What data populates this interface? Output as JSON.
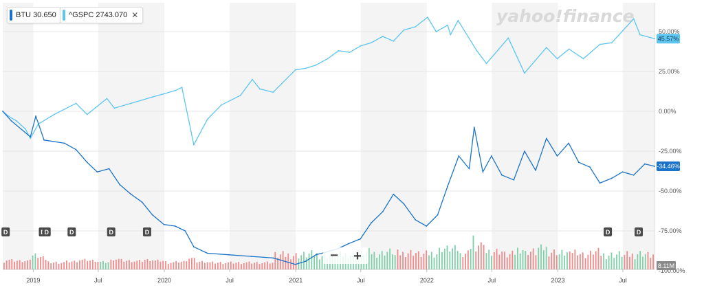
{
  "legend": [
    {
      "symbol": "BTU",
      "value": "30.650",
      "color": "#1a73c8",
      "closable": false
    },
    {
      "symbol": "^GSPC",
      "value": "2743.070",
      "color": "#5cc5f0",
      "closable": true
    }
  ],
  "watermark": "yahoo!finance",
  "zoom_out_label": "−",
  "zoom_in_label": "+",
  "last_badges": {
    "gspc": "45.57%",
    "btu": "-34.46%",
    "volume": "8.11M"
  },
  "colors": {
    "btu": "#1a73c8",
    "gspc": "#5cc5f0",
    "vol_up": "#7fd0a8",
    "vol_down": "#f08a8a",
    "band": "#f4f4f4"
  },
  "chart_data": {
    "type": "line",
    "y_unit": "percent change",
    "ylim": [
      -100,
      67
    ],
    "yticks": [
      -100,
      -75,
      -50,
      -25,
      0,
      25,
      50
    ],
    "ytick_labels": [
      "-100.00%",
      "-75.00%",
      "-50.00%",
      "-25.00%",
      "0.00%",
      "25.00%",
      "50.00%"
    ],
    "xlim": [
      "2018-10-08",
      "2023-09-27"
    ],
    "x_ticks": [
      {
        "date": "2019-01-01",
        "label": "2019"
      },
      {
        "date": "2019-07-01",
        "label": "Jul"
      },
      {
        "date": "2020-01-01",
        "label": "2020"
      },
      {
        "date": "2020-07-01",
        "label": "Jul"
      },
      {
        "date": "2021-01-01",
        "label": "2021"
      },
      {
        "date": "2021-07-01",
        "label": "Jul"
      },
      {
        "date": "2022-01-01",
        "label": "2022"
      },
      {
        "date": "2022-07-01",
        "label": "Jul"
      },
      {
        "date": "2023-01-01",
        "label": "2023"
      },
      {
        "date": "2023-07-01",
        "label": "Jul"
      }
    ],
    "series": [
      {
        "name": "^GSPC",
        "dates": [
          "2018-10-08",
          "2018-10-24",
          "2018-11-15",
          "2018-12-10",
          "2018-12-24",
          "2019-01-15",
          "2019-02-28",
          "2019-04-30",
          "2019-05-31",
          "2019-07-25",
          "2019-08-15",
          "2019-09-30",
          "2019-11-29",
          "2019-12-31",
          "2020-01-31",
          "2020-02-19",
          "2020-03-23",
          "2020-04-30",
          "2020-06-08",
          "2020-07-31",
          "2020-09-02",
          "2020-09-23",
          "2020-10-30",
          "2020-12-31",
          "2021-01-29",
          "2021-02-26",
          "2021-03-31",
          "2021-04-30",
          "2021-05-31",
          "2021-06-30",
          "2021-07-30",
          "2021-08-31",
          "2021-09-30",
          "2021-10-29",
          "2021-11-30",
          "2022-01-03",
          "2022-01-27",
          "2022-02-28",
          "2022-03-08",
          "2022-03-29",
          "2022-05-20",
          "2022-06-16",
          "2022-08-16",
          "2022-09-30",
          "2022-11-30",
          "2022-12-30",
          "2023-02-01",
          "2023-03-13",
          "2023-04-28",
          "2023-05-31",
          "2023-07-31",
          "2023-08-18",
          "2023-09-27"
        ],
        "values": [
          0.0,
          -3.0,
          -6.0,
          -11.0,
          -17.0,
          -8.0,
          -2.0,
          5.0,
          -2.0,
          8.0,
          2.0,
          5.0,
          9.0,
          11.0,
          13.0,
          15.0,
          -21.0,
          -5.0,
          4.0,
          10.0,
          20.0,
          14.0,
          12.0,
          26.0,
          27.0,
          29.0,
          33.0,
          38.0,
          37.0,
          41.0,
          43.0,
          47.0,
          44.0,
          51.0,
          53.0,
          59.0,
          50.0,
          54.0,
          48.0,
          57.0,
          38.0,
          30.0,
          46.0,
          24.0,
          40.0,
          33.0,
          39.0,
          33.0,
          42.0,
          43.0,
          58.0,
          48.0,
          45.57
        ]
      },
      {
        "name": "BTU",
        "dates": [
          "2018-10-08",
          "2018-11-01",
          "2018-12-24",
          "2019-01-08",
          "2019-01-31",
          "2019-03-29",
          "2019-04-30",
          "2019-05-31",
          "2019-06-28",
          "2019-07-31",
          "2019-08-30",
          "2019-09-30",
          "2019-10-31",
          "2019-11-29",
          "2019-12-31",
          "2020-01-31",
          "2020-02-28",
          "2020-03-23",
          "2020-04-30",
          "2020-06-30",
          "2020-08-31",
          "2020-10-30",
          "2020-12-31",
          "2021-01-29",
          "2021-02-26",
          "2021-03-31",
          "2021-04-30",
          "2021-05-28",
          "2021-06-30",
          "2021-07-30",
          "2021-08-31",
          "2021-09-30",
          "2021-10-29",
          "2021-11-30",
          "2021-12-31",
          "2022-01-31",
          "2022-02-28",
          "2022-03-31",
          "2022-04-29",
          "2022-05-13",
          "2022-06-06",
          "2022-06-30",
          "2022-07-29",
          "2022-08-31",
          "2022-09-30",
          "2022-10-31",
          "2022-11-30",
          "2022-12-30",
          "2023-01-31",
          "2023-02-28",
          "2023-03-31",
          "2023-04-28",
          "2023-05-31",
          "2023-06-30",
          "2023-07-31",
          "2023-08-31",
          "2023-09-27"
        ],
        "values": [
          0.0,
          -6.0,
          -16.0,
          -3.0,
          -18.0,
          -20.0,
          -24.0,
          -32.0,
          -38.0,
          -36.0,
          -46.0,
          -52.0,
          -57.0,
          -65.0,
          -71.0,
          -72.0,
          -75.0,
          -85.0,
          -89.0,
          -90.0,
          -91.0,
          -92.0,
          -96.0,
          -94.0,
          -90.0,
          -88.0,
          -86.0,
          -83.0,
          -80.0,
          -70.0,
          -63.0,
          -52.0,
          -58.0,
          -68.0,
          -72.0,
          -65.0,
          -47.0,
          -28.0,
          -36.0,
          -10.0,
          -38.0,
          -28.0,
          -40.0,
          -43.0,
          -25.0,
          -37.0,
          -17.0,
          -28.0,
          -20.0,
          -32.0,
          -35.0,
          -45.0,
          -42.0,
          -38.0,
          -40.0,
          -33.0,
          -34.46
        ]
      }
    ]
  },
  "dividends": [
    {
      "label": "D",
      "date": "2018-10-16"
    },
    {
      "label": "D",
      "date": "2019-01-28"
    },
    {
      "label": "D",
      "date": "2019-02-07"
    },
    {
      "label": "D",
      "date": "2019-04-18"
    },
    {
      "label": "D",
      "date": "2019-08-06"
    },
    {
      "label": "D",
      "date": "2019-11-14"
    },
    {
      "label": "D",
      "date": "2023-05-20"
    },
    {
      "label": "D",
      "date": "2023-08-14"
    }
  ]
}
